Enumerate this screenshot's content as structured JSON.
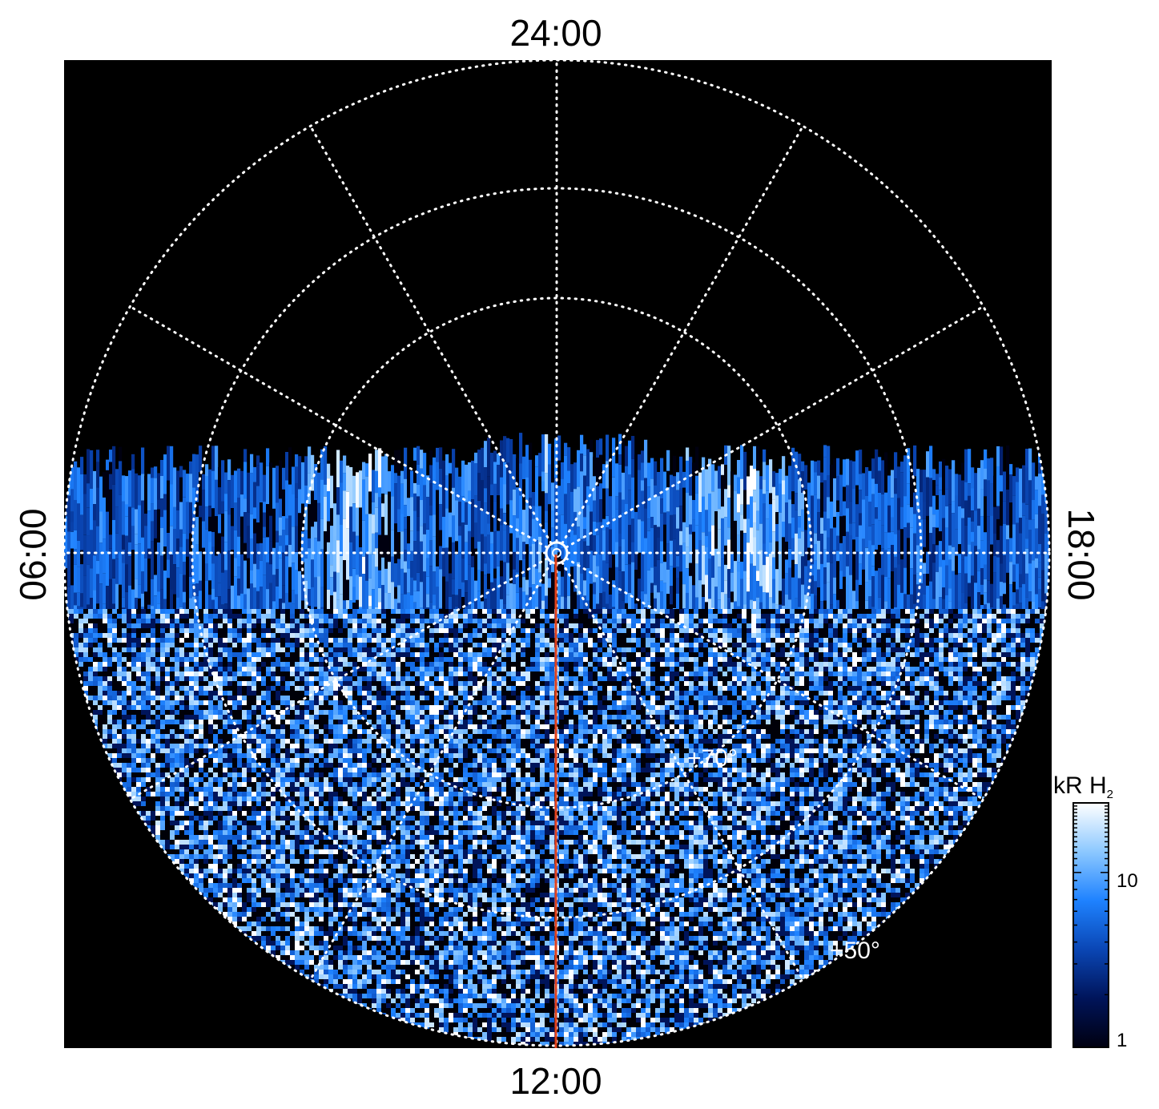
{
  "figure": {
    "local_time_labels": {
      "top": "24:00",
      "bottom": "12:00",
      "left": "06:00",
      "right": "18:00"
    },
    "latitude_labels": {
      "inner": "+70°",
      "outer": "+50°"
    },
    "colorbar": {
      "title_main": "kR H",
      "title_sub": "2",
      "scale": "log",
      "tick_labels": [
        "1",
        "10"
      ],
      "range": [
        1,
        25
      ],
      "colors": [
        "#000010",
        "#00145a",
        "#0a46b4",
        "#1e82ff",
        "#8cc8ff",
        "#ffffff"
      ]
    },
    "grid": {
      "style": "dotted",
      "color": "#ffffff",
      "meridian_count": 12
    },
    "trace_color": "#e0401a",
    "background": "#000000"
  }
}
